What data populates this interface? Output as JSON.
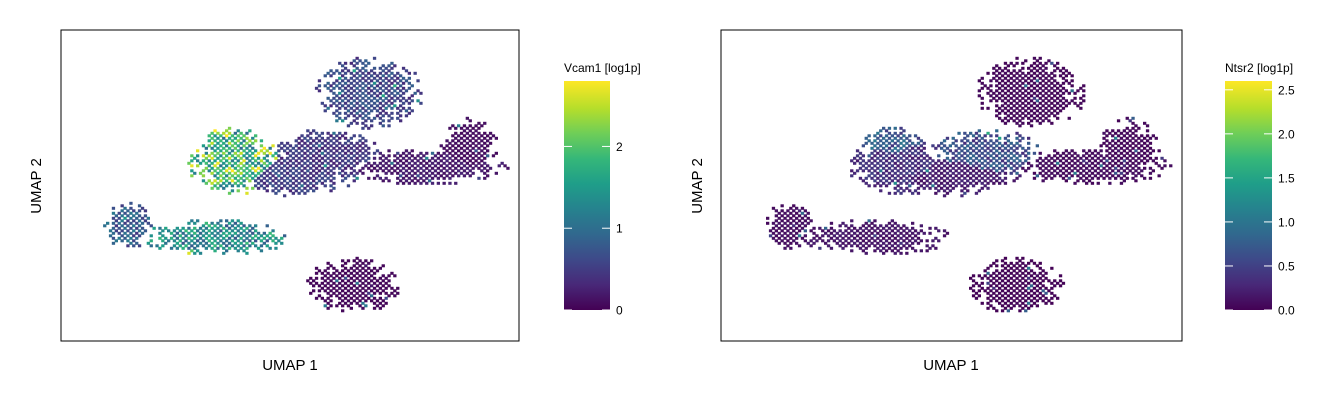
{
  "palette": [
    "#440154",
    "#482878",
    "#3e4989",
    "#31688e",
    "#26828e",
    "#1f9e89",
    "#35b779",
    "#6ece58",
    "#b5de2b",
    "#fde725"
  ],
  "chart_data": [
    {
      "type": "heatmap",
      "subtype": "umap-hexbin-feature-plot",
      "title": "",
      "xlabel": "UMAP 1",
      "ylabel": "UMAP 2",
      "axis_ticks": false,
      "grid": false,
      "legend": {
        "title": "Vcam1 [log1p]",
        "placement": "right",
        "min": 0,
        "max": 2.8,
        "ticks": [
          0,
          1,
          2
        ],
        "tick_labels": [
          "0",
          "1",
          "2"
        ]
      },
      "regions": [
        {
          "name": "left-cluster",
          "center": [
            -3.8,
            -2.0
          ],
          "spread": [
            0.35,
            0.45
          ],
          "value": 0.8
        },
        {
          "name": "lower-left-arm",
          "center": [
            -1.6,
            -2.4
          ],
          "spread": [
            1.1,
            0.35
          ],
          "value": 1.3
        },
        {
          "name": "central-left-blob",
          "center": [
            -1.0,
            0.0
          ],
          "spread": [
            0.75,
            0.55
          ],
          "value": 1.9
        },
        {
          "name": "central-upper-left",
          "center": [
            -1.2,
            0.8
          ],
          "spread": [
            0.45,
            0.3
          ],
          "value": 1.7
        },
        {
          "name": "bridge",
          "center": [
            0.3,
            -0.3
          ],
          "spread": [
            1.0,
            0.4
          ],
          "value": 0.5
        },
        {
          "name": "central-hub",
          "center": [
            1.2,
            0.4
          ],
          "spread": [
            0.8,
            0.5
          ],
          "value": 0.45
        },
        {
          "name": "upper-right-cluster",
          "center": [
            2.3,
            2.5
          ],
          "spread": [
            0.8,
            0.7
          ],
          "value": 0.6
        },
        {
          "name": "right-arm",
          "center": [
            3.8,
            0.0
          ],
          "spread": [
            1.2,
            0.35
          ],
          "value": 0.2
        },
        {
          "name": "far-right-cluster",
          "center": [
            4.8,
            0.6
          ],
          "spread": [
            0.45,
            0.6
          ],
          "value": 0.1
        },
        {
          "name": "bottom-cluster",
          "center": [
            1.9,
            -4.0
          ],
          "spread": [
            0.7,
            0.55
          ],
          "value": 0.05
        }
      ]
    },
    {
      "type": "heatmap",
      "subtype": "umap-hexbin-feature-plot",
      "title": "",
      "xlabel": "UMAP 1",
      "ylabel": "UMAP 2",
      "axis_ticks": false,
      "grid": false,
      "legend": {
        "title": "Ntsr2 [log1p]",
        "placement": "right",
        "min": 0,
        "max": 2.6,
        "ticks": [
          0,
          0.5,
          1.0,
          1.5,
          2.0,
          2.5
        ],
        "tick_labels": [
          "0.0",
          "0.5",
          "1.0",
          "1.5",
          "2.0",
          "2.5"
        ]
      },
      "regions": [
        {
          "name": "left-cluster",
          "center": [
            -3.8,
            -2.0
          ],
          "spread": [
            0.35,
            0.45
          ],
          "value": 0.1
        },
        {
          "name": "lower-left-arm",
          "center": [
            -1.6,
            -2.4
          ],
          "spread": [
            1.1,
            0.35
          ],
          "value": 0.15
        },
        {
          "name": "central-left-blob",
          "center": [
            -1.0,
            0.0
          ],
          "spread": [
            0.75,
            0.55
          ],
          "value": 0.35
        },
        {
          "name": "central-upper-left",
          "center": [
            -1.2,
            0.8
          ],
          "spread": [
            0.45,
            0.3
          ],
          "value": 0.7
        },
        {
          "name": "bridge",
          "center": [
            0.3,
            -0.3
          ],
          "spread": [
            1.0,
            0.4
          ],
          "value": 0.2
        },
        {
          "name": "central-hub",
          "center": [
            1.2,
            0.4
          ],
          "spread": [
            0.8,
            0.5
          ],
          "value": 0.6
        },
        {
          "name": "upper-right-cluster",
          "center": [
            2.3,
            2.5
          ],
          "spread": [
            0.8,
            0.7
          ],
          "value": 0.05
        },
        {
          "name": "right-arm",
          "center": [
            3.8,
            0.0
          ],
          "spread": [
            1.2,
            0.35
          ],
          "value": 0.08
        },
        {
          "name": "far-right-cluster",
          "center": [
            4.8,
            0.6
          ],
          "spread": [
            0.45,
            0.6
          ],
          "value": 0.05
        },
        {
          "name": "bottom-cluster",
          "center": [
            1.9,
            -4.0
          ],
          "spread": [
            0.7,
            0.55
          ],
          "value": 0.02
        }
      ]
    }
  ]
}
